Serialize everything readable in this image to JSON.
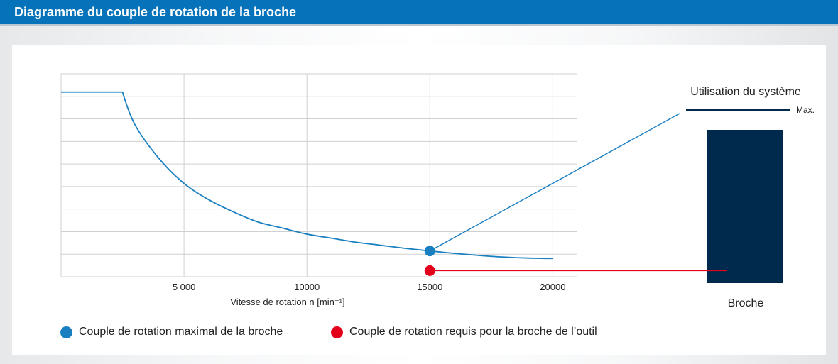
{
  "header": {
    "title": "Diagramme du couple de rotation de la broche"
  },
  "colors": {
    "header_bg": "#0672b9",
    "curve": "#1a7fc1",
    "max_point": "#1a7fc1",
    "required_point": "#e3001b",
    "spindle_bar": "#002a4d",
    "grid": "#d0d0d0"
  },
  "chart_data": {
    "type": "line",
    "title": "",
    "xlabel": "Vitesse de rotation n [min⁻¹]",
    "ylabel": "",
    "xlim": [
      0,
      21000
    ],
    "ylim": [
      0,
      1
    ],
    "x_ticks": [
      5000,
      10000,
      15000,
      20000
    ],
    "x_tick_labels": [
      "5 000",
      "10000",
      "15000",
      "20000"
    ],
    "y_gridlines": 9,
    "grid": true,
    "series": [
      {
        "name": "Couple de rotation maximal de la broche",
        "x": [
          0,
          2500,
          3000,
          4000,
          5000,
          6000,
          7000,
          8000,
          9000,
          10000,
          11000,
          12000,
          13000,
          14000,
          15000,
          16000,
          17000,
          18000,
          19000,
          20000
        ],
        "y": [
          0.91,
          0.91,
          0.75,
          0.58,
          0.46,
          0.38,
          0.32,
          0.27,
          0.24,
          0.21,
          0.19,
          0.17,
          0.155,
          0.14,
          0.127,
          0.115,
          0.105,
          0.097,
          0.092,
          0.09
        ]
      }
    ],
    "points": [
      {
        "name": "Couple de rotation maximal de la broche",
        "x": 15000,
        "y": 0.127
      },
      {
        "name": "Couple de rotation requis pour la broche de l’outil",
        "x": 15000,
        "y": 0.03
      }
    ]
  },
  "system_usage": {
    "title": "Utilisation du système",
    "max_label": "Max.",
    "bar_label": "Broche"
  },
  "legend": [
    {
      "label": "Couple de rotation maximal de la broche",
      "color": "#1a7fc1"
    },
    {
      "label": "Couple de rotation requis pour la broche de l’outil",
      "color": "#e3001b"
    }
  ]
}
